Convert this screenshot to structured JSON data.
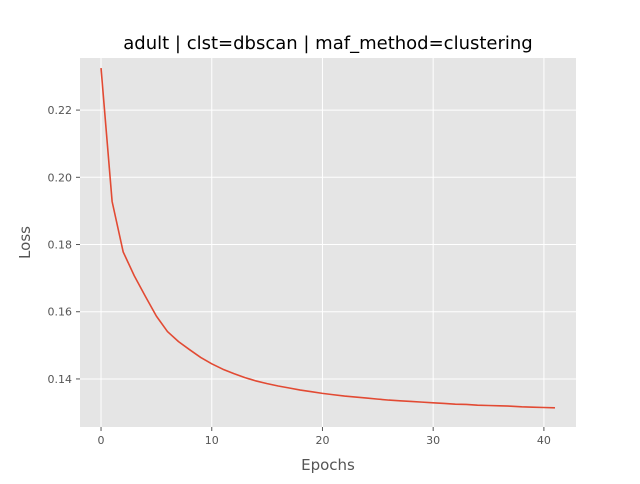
{
  "chart_data": {
    "type": "line",
    "title": "adult | clst=dbscan | maf_method=clustering",
    "xlabel": "Epochs",
    "ylabel": "Loss",
    "xlim": [
      -1.9,
      42.9
    ],
    "ylim": [
      0.1257,
      0.2355
    ],
    "xticks": [
      0,
      10,
      20,
      30,
      40
    ],
    "yticks": [
      0.14,
      0.16,
      0.18,
      0.2,
      0.22
    ],
    "xtick_labels": [
      "0",
      "10",
      "20",
      "30",
      "40"
    ],
    "ytick_labels": [
      "0.14",
      "0.16",
      "0.18",
      "0.20",
      "0.22"
    ],
    "grid": true,
    "style": {
      "background": "#e5e5e5",
      "grid_color": "#ffffff",
      "line_color": "#e24a33",
      "text_color": "#555555",
      "title_color": "#000000"
    },
    "series": [
      {
        "x": [
          0,
          1,
          2,
          3,
          4,
          5,
          6,
          7,
          8,
          9,
          10,
          11,
          12,
          13,
          14,
          15,
          16,
          17,
          18,
          19,
          20,
          21,
          22,
          23,
          24,
          25,
          26,
          27,
          28,
          29,
          30,
          31,
          32,
          33,
          34,
          35,
          36,
          37,
          38,
          39,
          40,
          41
        ],
        "values": [
          0.2325,
          0.1928,
          0.1778,
          0.1707,
          0.1646,
          0.1587,
          0.1541,
          0.1511,
          0.1487,
          0.1464,
          0.1445,
          0.1429,
          0.1416,
          0.1404,
          0.1394,
          0.1386,
          0.1379,
          0.1373,
          0.1367,
          0.1362,
          0.1357,
          0.1353,
          0.1349,
          0.1346,
          0.1343,
          0.134,
          0.1337,
          0.1335,
          0.1333,
          0.1331,
          0.1329,
          0.1327,
          0.1325,
          0.1324,
          0.1322,
          0.1321,
          0.132,
          0.1319,
          0.1317,
          0.1316,
          0.1315,
          0.1314
        ]
      }
    ]
  }
}
